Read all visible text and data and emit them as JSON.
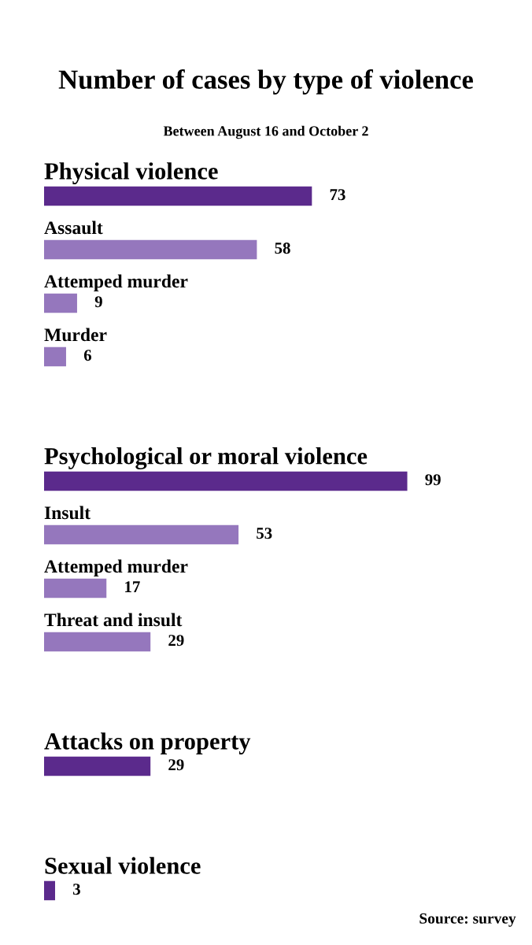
{
  "chart_data": [
    {
      "type": "bar",
      "orientation": "horizontal",
      "title": "Number of cases by type of violence",
      "subtitle": "Between August 16 and October 2",
      "categories": [
        "Physical violence",
        "Assault",
        "Attemped murder",
        "Murder"
      ],
      "values": [
        73,
        58,
        9,
        6
      ],
      "colors": [
        "#5b2a8c",
        "#9577bd",
        "#9577bd",
        "#9577bd"
      ],
      "data_labels": true
    },
    {
      "type": "bar",
      "orientation": "horizontal",
      "categories": [
        "Psychological or moral violence",
        "Insult",
        "Attemped murder",
        "Threat and insult"
      ],
      "values": [
        99,
        53,
        17,
        29
      ],
      "colors": [
        "#5b2a8c",
        "#9577bd",
        "#9577bd",
        "#9577bd"
      ],
      "data_labels": true
    },
    {
      "type": "bar",
      "orientation": "horizontal",
      "categories": [
        "Attacks on property"
      ],
      "values": [
        29
      ],
      "colors": [
        "#5b2a8c"
      ],
      "data_labels": true
    },
    {
      "type": "bar",
      "orientation": "horizontal",
      "categories": [
        "Sexual violence"
      ],
      "values": [
        3
      ],
      "colors": [
        "#5b2a8c"
      ],
      "data_labels": true,
      "annotations": [
        "Source: survey"
      ]
    }
  ]
}
